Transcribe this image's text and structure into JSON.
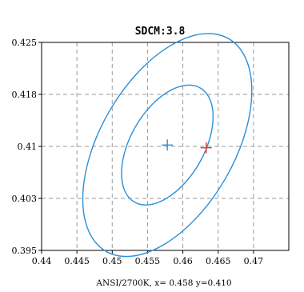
{
  "chart_data": {
    "type": "scatter",
    "title": "SDCM:3.8",
    "xlabel": "ANSI/2700K, x= 0.458 y=0.410",
    "ylabel": "",
    "xlim": [
      0.44,
      0.475
    ],
    "ylim": [
      0.395,
      0.425
    ],
    "x_ticks": [
      "0.44",
      "0.445",
      "0.45",
      "0.455",
      "0.46",
      "0.465",
      "0.47"
    ],
    "y_ticks": [
      "0.395",
      "0.403",
      "0.41",
      "0.418",
      "0.425"
    ],
    "y_tick_values": [
      0.395,
      0.4025,
      0.41,
      0.4175,
      0.425
    ],
    "grid": true,
    "ellipses": [
      {
        "cx": 0.4578,
        "cy": 0.4102,
        "rx": 0.0052,
        "ry": 0.0095,
        "rotation_deg": 30,
        "color": "#2a8fd8"
      },
      {
        "cx": 0.4578,
        "cy": 0.4102,
        "rx": 0.0095,
        "ry": 0.0177,
        "rotation_deg": 30,
        "color": "#2a8fd8"
      }
    ],
    "markers": [
      {
        "x": 0.4578,
        "y": 0.4102,
        "marker": "plus",
        "color": "#2a8fd8"
      },
      {
        "x": 0.4633,
        "y": 0.4098,
        "marker": "plus",
        "color": "#e23a3a"
      }
    ],
    "colors": {
      "ellipse": "#2a8fd8",
      "center_marker": "#2a8fd8",
      "test_marker": "#e23a3a",
      "grid": "#9a9a9a"
    }
  }
}
